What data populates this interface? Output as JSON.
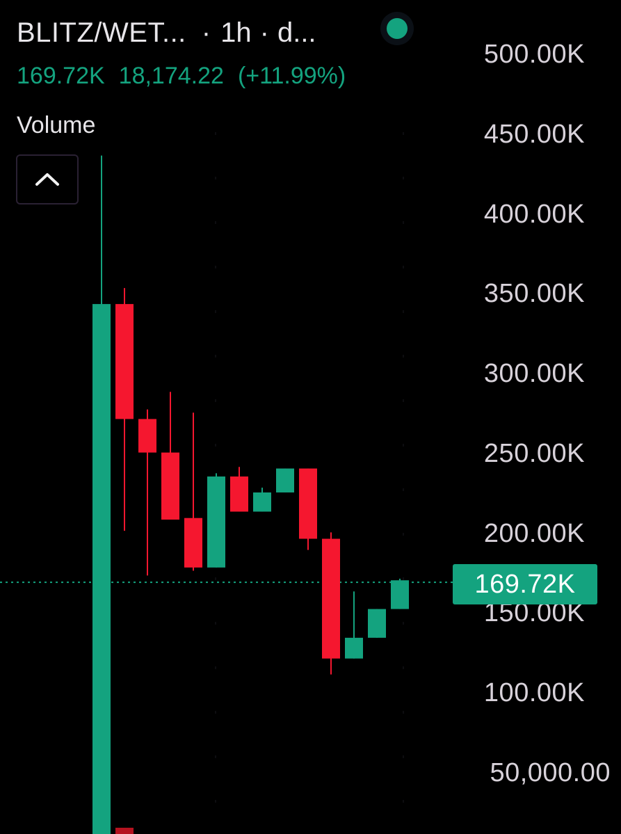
{
  "header": {
    "pair": "BLITZ/WET...",
    "separator": "·",
    "interval": "1h",
    "exchange": "d...",
    "last_price": "169.72K",
    "change": "18,174.22",
    "change_pct": "(+11.99%)"
  },
  "indicator": {
    "label": "Volume"
  },
  "colors": {
    "up": "#14a37f",
    "down": "#f5172f",
    "background": "#000000",
    "text": "#e8e6ea",
    "axis_text": "#d8d2da"
  },
  "icons": {
    "collapse": "chevron-up-icon",
    "status": "status-dot-icon"
  },
  "chart_data": {
    "type": "candlestick",
    "y_axis": {
      "ticks": [
        "500.00K",
        "450.00K",
        "400.00K",
        "350.00K",
        "300.00K",
        "250.00K",
        "200.00K",
        "150.00K",
        "100.00K",
        "50,000.00"
      ],
      "tick_values": [
        500000,
        450000,
        400000,
        350000,
        300000,
        250000,
        200000,
        150000,
        100000,
        50000
      ],
      "position": "right"
    },
    "current_price": {
      "label": "169.72K",
      "value": 169720
    },
    "candles": [
      {
        "o": 0,
        "h": 437000,
        "l": 0,
        "c": 344000
      },
      {
        "o": 344000,
        "h": 354000,
        "l": 202000,
        "c": 272000
      },
      {
        "o": 272000,
        "h": 278000,
        "l": 174000,
        "c": 251000
      },
      {
        "o": 251000,
        "h": 289000,
        "l": 211000,
        "c": 209000
      },
      {
        "o": 210000,
        "h": 276000,
        "l": 177000,
        "c": 179000
      },
      {
        "o": 179000,
        "h": 238000,
        "l": 179000,
        "c": 236000
      },
      {
        "o": 236000,
        "h": 242000,
        "l": 214000,
        "c": 214000
      },
      {
        "o": 214000,
        "h": 229000,
        "l": 214000,
        "c": 226000
      },
      {
        "o": 226000,
        "h": 241000,
        "l": 226000,
        "c": 241000
      },
      {
        "o": 241000,
        "h": 241000,
        "l": 190000,
        "c": 197000
      },
      {
        "o": 197000,
        "h": 201000,
        "l": 112000,
        "c": 122000
      },
      {
        "o": 122000,
        "h": 164000,
        "l": 122000,
        "c": 135000
      },
      {
        "o": 135000,
        "h": 153000,
        "l": 135000,
        "c": 153000
      },
      {
        "o": 153000,
        "h": 172000,
        "l": 153000,
        "c": 171000
      }
    ],
    "volume": [
      {
        "direction": "down",
        "partial": true
      }
    ]
  }
}
